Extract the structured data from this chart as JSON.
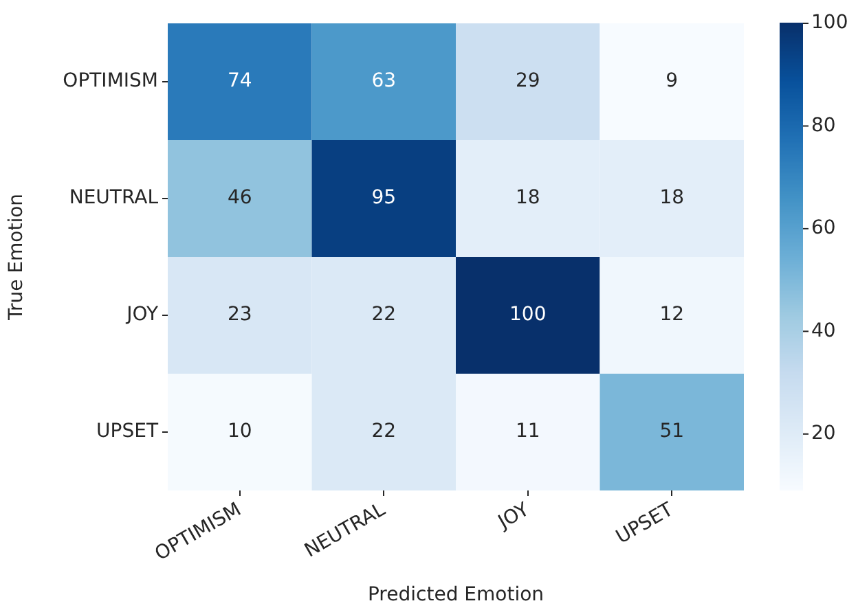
{
  "chart_data": {
    "type": "heatmap",
    "xlabel": "Predicted Emotion",
    "ylabel": "True Emotion",
    "categories": [
      "OPTIMISM",
      "NEUTRAL",
      "JOY",
      "UPSET"
    ],
    "y_categories": [
      "OPTIMISM",
      "NEUTRAL",
      "JOY",
      "UPSET"
    ],
    "cells": [
      [
        74,
        63,
        29,
        9
      ],
      [
        46,
        95,
        18,
        18
      ],
      [
        23,
        22,
        100,
        12
      ],
      [
        10,
        22,
        11,
        51
      ]
    ],
    "clim": [
      9,
      100
    ],
    "cticks": [
      20,
      40,
      60,
      80,
      100
    ],
    "data_labels": true
  }
}
